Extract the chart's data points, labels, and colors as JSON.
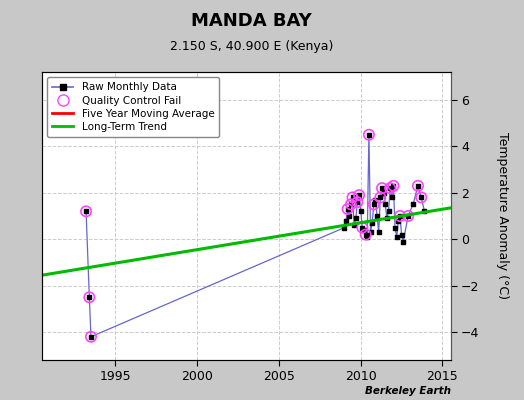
{
  "title": "MANDA BAY",
  "subtitle": "2.150 S, 40.900 E (Kenya)",
  "ylabel": "Temperature Anomaly (°C)",
  "watermark": "Berkeley Earth",
  "xlim": [
    1990.5,
    2015.5
  ],
  "ylim": [
    -5.2,
    7.2
  ],
  "yticks": [
    -4,
    -2,
    0,
    2,
    4,
    6
  ],
  "xticks": [
    1995,
    2000,
    2005,
    2010,
    2015
  ],
  "background_color": "#c8c8c8",
  "plot_bg_color": "#ffffff",
  "raw_data": [
    [
      1993.2,
      1.2
    ],
    [
      1993.4,
      -2.5
    ],
    [
      1993.5,
      -4.2
    ],
    [
      2009.0,
      0.5
    ],
    [
      2009.1,
      0.8
    ],
    [
      2009.2,
      1.3
    ],
    [
      2009.3,
      1.0
    ],
    [
      2009.4,
      1.5
    ],
    [
      2009.5,
      1.8
    ],
    [
      2009.6,
      0.6
    ],
    [
      2009.7,
      0.9
    ],
    [
      2009.8,
      1.6
    ],
    [
      2009.9,
      1.9
    ],
    [
      2010.0,
      1.2
    ],
    [
      2010.1,
      0.5
    ],
    [
      2010.2,
      0.4
    ],
    [
      2010.3,
      0.2
    ],
    [
      2010.4,
      0.1
    ],
    [
      2010.5,
      4.5
    ],
    [
      2010.6,
      0.3
    ],
    [
      2010.7,
      0.7
    ],
    [
      2010.8,
      1.5
    ],
    [
      2010.9,
      1.7
    ],
    [
      2011.0,
      1.0
    ],
    [
      2011.1,
      0.3
    ],
    [
      2011.2,
      1.8
    ],
    [
      2011.3,
      2.2
    ],
    [
      2011.4,
      2.0
    ],
    [
      2011.5,
      1.5
    ],
    [
      2011.6,
      0.9
    ],
    [
      2011.7,
      1.2
    ],
    [
      2011.8,
      2.2
    ],
    [
      2011.9,
      1.8
    ],
    [
      2012.0,
      2.3
    ],
    [
      2012.1,
      0.5
    ],
    [
      2012.2,
      0.1
    ],
    [
      2012.3,
      0.8
    ],
    [
      2012.4,
      1.0
    ],
    [
      2012.5,
      0.2
    ],
    [
      2012.6,
      -0.1
    ],
    [
      2012.9,
      1.0
    ],
    [
      2013.2,
      1.5
    ],
    [
      2013.5,
      2.3
    ],
    [
      2013.7,
      1.8
    ],
    [
      2013.9,
      1.2
    ]
  ],
  "qc_fail": [
    [
      1993.2,
      1.2
    ],
    [
      1993.4,
      -2.5
    ],
    [
      1993.5,
      -4.2
    ],
    [
      2009.2,
      1.3
    ],
    [
      2009.4,
      1.5
    ],
    [
      2009.5,
      1.8
    ],
    [
      2009.8,
      1.6
    ],
    [
      2009.9,
      1.9
    ],
    [
      2010.1,
      0.5
    ],
    [
      2010.3,
      0.2
    ],
    [
      2010.5,
      4.5
    ],
    [
      2010.8,
      1.5
    ],
    [
      2011.2,
      1.8
    ],
    [
      2011.3,
      2.2
    ],
    [
      2011.8,
      2.2
    ],
    [
      2012.0,
      2.3
    ],
    [
      2012.4,
      1.0
    ],
    [
      2012.9,
      1.0
    ],
    [
      2013.5,
      2.3
    ],
    [
      2013.7,
      1.8
    ]
  ],
  "trend_line": {
    "x": [
      1990.5,
      2015.5
    ],
    "y": [
      -1.55,
      1.35
    ]
  },
  "raw_line_color": "#6666cc",
  "raw_marker_color": "black",
  "qc_marker_color": "#ff44ff",
  "trend_color": "#00bb00",
  "mavg_color": "red",
  "grid_color": "#cccccc",
  "spine_color": "#555555"
}
